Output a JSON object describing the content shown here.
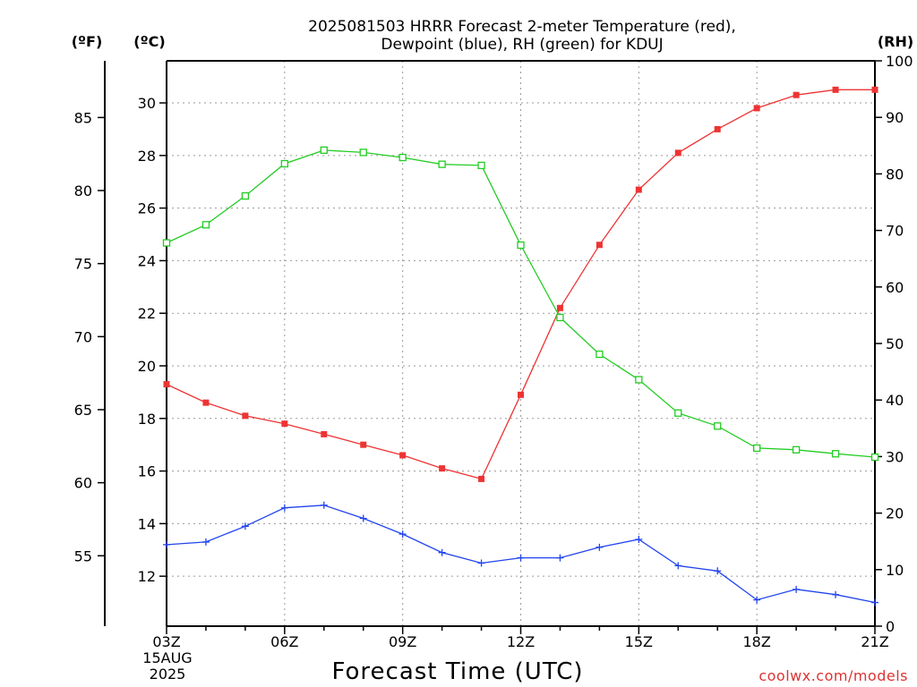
{
  "title_line1": "2025081503 HRRR Forecast 2-meter Temperature (red),",
  "title_line2": "Dewpoint (blue), RH (green) for KDUJ",
  "unit_f": "(ºF)",
  "unit_c": "(ºC)",
  "unit_rh": "(RH)",
  "xlabel": "Forecast Time (UTC)",
  "date_line1": "15AUG",
  "date_line2": "2025",
  "credit": "coolwx.com/models",
  "colors": {
    "temperature": "#ee3333",
    "dewpoint": "#2244ee",
    "rh": "#22cc22",
    "credit": "#dd3333"
  },
  "chart_data": {
    "type": "line",
    "x": [
      "03Z",
      "04Z",
      "05Z",
      "06Z",
      "07Z",
      "08Z",
      "09Z",
      "10Z",
      "11Z",
      "12Z",
      "13Z",
      "14Z",
      "15Z",
      "16Z",
      "17Z",
      "18Z",
      "19Z",
      "20Z",
      "21Z"
    ],
    "x_ticks": [
      "03Z",
      "06Z",
      "09Z",
      "12Z",
      "15Z",
      "18Z",
      "21Z"
    ],
    "y_left_c": {
      "range": [
        10.1,
        31.6
      ],
      "ticks": [
        12,
        14,
        16,
        18,
        20,
        22,
        24,
        26,
        28,
        30
      ]
    },
    "y_left_f": {
      "ticks": [
        55,
        60,
        65,
        70,
        75,
        80,
        85
      ]
    },
    "y_right_rh": {
      "range": [
        0,
        100
      ],
      "ticks": [
        0,
        10,
        20,
        30,
        40,
        50,
        60,
        70,
        80,
        90,
        100
      ]
    },
    "grid": true,
    "series": [
      {
        "key": "temperature",
        "axis": "c",
        "marker": "filled-square",
        "values": [
          19.3,
          18.6,
          18.1,
          17.8,
          17.4,
          17.0,
          16.6,
          16.1,
          15.7,
          18.9,
          22.2,
          24.6,
          26.7,
          28.1,
          29.0,
          29.8,
          30.3,
          30.5,
          30.5
        ]
      },
      {
        "key": "dewpoint",
        "axis": "c",
        "marker": "plus",
        "values": [
          13.2,
          13.3,
          13.9,
          14.6,
          14.7,
          14.2,
          13.6,
          12.9,
          12.5,
          12.7,
          12.7,
          13.1,
          13.4,
          12.4,
          12.2,
          11.1,
          11.5,
          11.3,
          11.0
        ]
      },
      {
        "key": "rh",
        "axis": "rh",
        "marker": "open-square",
        "values": [
          67.8,
          71.0,
          76.1,
          81.8,
          84.2,
          83.8,
          82.9,
          81.7,
          81.5,
          67.4,
          54.6,
          48.1,
          43.6,
          37.7,
          35.4,
          31.5,
          31.2,
          30.5,
          29.9
        ]
      }
    ]
  }
}
